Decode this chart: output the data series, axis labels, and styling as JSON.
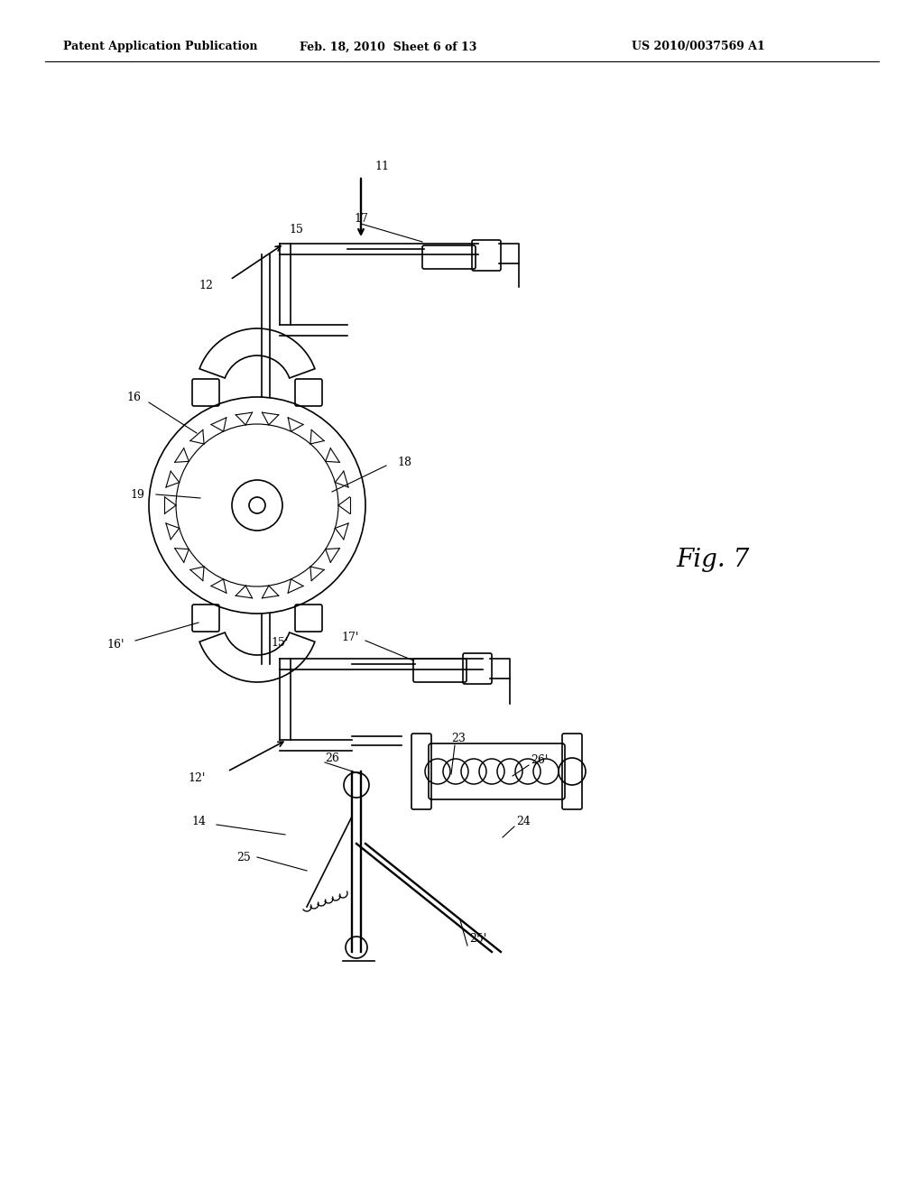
{
  "bg_color": "#ffffff",
  "header_text": "Patent Application Publication",
  "header_date": "Feb. 18, 2010  Sheet 6 of 13",
  "header_patent": "US 2010/0037569 A1",
  "fig_label": "Fig. 7",
  "line_color": "#000000",
  "lw": 1.2
}
